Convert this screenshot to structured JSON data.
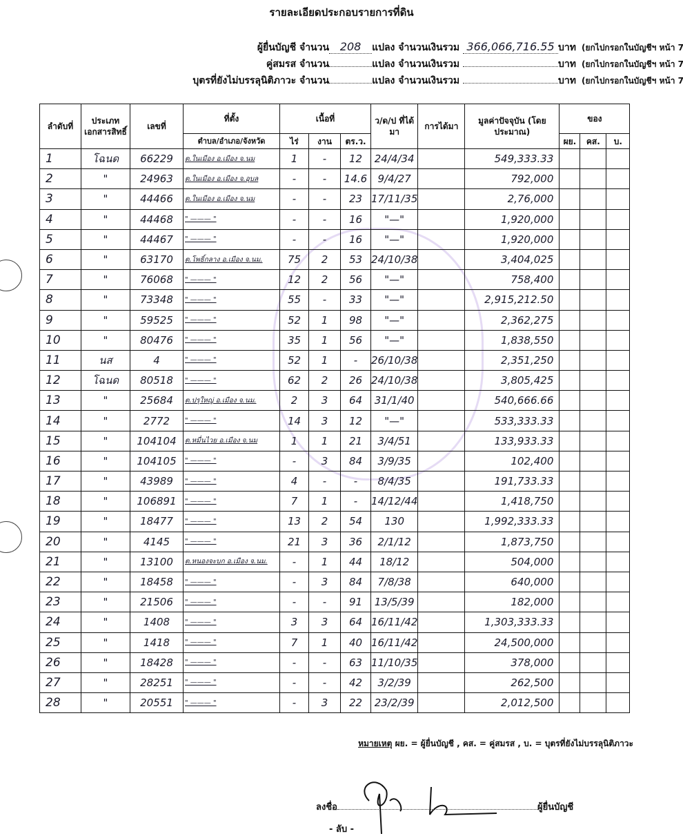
{
  "title": "รายละเอียดประกอบรายการที่ดิน",
  "summary": [
    {
      "who": "ผู้ยื่นบัญชี",
      "count_label": "จำนวน",
      "count": "208",
      "unit": "แปลง จำนวนเงินรวม",
      "amount": "366,066,716.55",
      "currency": "บาท",
      "note": "(ยกไปกรอกในบัญชีฯ หน้า 7)"
    },
    {
      "who": "คู่สมรส",
      "count_label": "จำนวน",
      "count": "",
      "unit": "แปลง จำนวนเงินรวม",
      "amount": "",
      "currency": "บาท",
      "note": "(ยกไปกรอกในบัญชีฯ หน้า 7)"
    },
    {
      "who": "บุตรที่ยังไม่บรรลุนิติภาวะ",
      "count_label": "จำนวน",
      "count": "",
      "unit": "แปลง จำนวนเงินรวม",
      "amount": "",
      "currency": "บาท",
      "note": "(ยกไปกรอกในบัญชีฯ หน้า 7)"
    }
  ],
  "table": {
    "headers": {
      "no": "ลำดับที่",
      "doc_type": "ประเภทเอกสารสิทธิ์",
      "number": "เลขที่",
      "location": "ที่ตั้ง",
      "location_sub": "ตำบล/อำเภอ/จังหวัด",
      "area": "เนื้อที่",
      "rai": "ไร่",
      "ngan": "งาน",
      "wa": "ตร.ว.",
      "date": "ว/ด/ป ที่ได้มา",
      "acquisition": "การได้มา",
      "value": "มูลค่าปัจจุบัน (โดยประมาณ)",
      "owner": "ของ",
      "owner_filer": "ผย.",
      "owner_spouse": "คส.",
      "owner_child": "บ."
    },
    "rows": [
      [
        "1",
        "โฉนด",
        "66229",
        "ต.ในเมือง อ.เมือง จ.นม",
        "1",
        "-",
        "12",
        "24/4/34",
        "",
        "549,333.33"
      ],
      [
        "2",
        "\"",
        "24963",
        "ต.ในเมือง อ.เมือง จ.อุบล",
        "-",
        "-",
        "14.6",
        "9/4/27",
        "",
        "792,000"
      ],
      [
        "3",
        "\"",
        "44466",
        "ต.ในเมือง อ.เมือง จ.นม",
        "-",
        "-",
        "23",
        "17/11/35",
        "",
        "2,76,000"
      ],
      [
        "4",
        "\"",
        "44468",
        "\" ——— \"",
        "-",
        "-",
        "16",
        "\"—\"",
        "",
        "1,920,000"
      ],
      [
        "5",
        "\"",
        "44467",
        "\" ——— \"",
        "-",
        "-",
        "16",
        "\"—\"",
        "",
        "1,920,000"
      ],
      [
        "6",
        "\"",
        "63170",
        "ต.โพธิ์กลาง อ.เมือง จ.นม.",
        "75",
        "2",
        "53",
        "24/10/38",
        "",
        "3,404,025"
      ],
      [
        "7",
        "\"",
        "76068",
        "\" ——— \"",
        "12",
        "2",
        "56",
        "\"—\"",
        "",
        "758,400"
      ],
      [
        "8",
        "\"",
        "73348",
        "\" ——— \"",
        "55",
        "-",
        "33",
        "\"—\"",
        "",
        "2,915,212.50"
      ],
      [
        "9",
        "\"",
        "59525",
        "\" ——— \"",
        "52",
        "1",
        "98",
        "\"—\"",
        "",
        "2,362,275"
      ],
      [
        "10",
        "\"",
        "80476",
        "\" ——— \"",
        "35",
        "1",
        "56",
        "\"—\"",
        "",
        "1,838,550"
      ],
      [
        "11",
        "นส",
        "4",
        "\" ——— \"",
        "52",
        "1",
        "-",
        "26/10/38",
        "",
        "2,351,250"
      ],
      [
        "12",
        "โฉนด",
        "80518",
        "\" ——— \"",
        "62",
        "2",
        "26",
        "24/10/38",
        "",
        "3,805,425"
      ],
      [
        "13",
        "\"",
        "25684",
        "ต.ปรุใหญ่ อ.เมือง จ.นม.",
        "2",
        "3",
        "64",
        "31/1/40",
        "",
        "540,666.66"
      ],
      [
        "14",
        "\"",
        "2772",
        "\" ——— \"",
        "14",
        "3",
        "12",
        "\"—\"",
        "",
        "533,333.33"
      ],
      [
        "15",
        "\"",
        "104104",
        "ต.หมื่นไวย อ.เมือง จ.นม",
        "1",
        "1",
        "21",
        "3/4/51",
        "",
        "133,933.33"
      ],
      [
        "16",
        "\"",
        "104105",
        "\" ——— \"",
        "-",
        "3",
        "84",
        "3/9/35",
        "",
        "102,400"
      ],
      [
        "17",
        "\"",
        "43989",
        "\" ——— \"",
        "4",
        "-",
        "-",
        "8/4/35",
        "",
        "191,733.33"
      ],
      [
        "18",
        "\"",
        "106891",
        "\" ——— \"",
        "7",
        "1",
        "-",
        "14/12/44",
        "",
        "1,418,750"
      ],
      [
        "19",
        "\"",
        "18477",
        "\" ——— \"",
        "13",
        "2",
        "54",
        "130",
        "",
        "1,992,333.33"
      ],
      [
        "20",
        "\"",
        "4145",
        "\" ——— \"",
        "21",
        "3",
        "36",
        "2/1/12",
        "",
        "1,873,750"
      ],
      [
        "21",
        "\"",
        "13100",
        "ต.หนองจะบก อ.เมือง จ.นม.",
        "-",
        "1",
        "44",
        "18/12",
        "",
        "504,000"
      ],
      [
        "22",
        "\"",
        "18458",
        "\" ——— \"",
        "-",
        "3",
        "84",
        "7/8/38",
        "",
        "640,000"
      ],
      [
        "23",
        "\"",
        "21506",
        "\" ——— \"",
        "-",
        "-",
        "91",
        "13/5/39",
        "",
        "182,000"
      ],
      [
        "24",
        "\"",
        "1408",
        "\" ——— \"",
        "3",
        "3",
        "64",
        "16/11/42",
        "",
        "1,303,333.33"
      ],
      [
        "25",
        "\"",
        "1418",
        "\" ——— \"",
        "7",
        "1",
        "40",
        "16/11/42",
        "",
        "24,500,000"
      ],
      [
        "26",
        "\"",
        "18428",
        "\" ——— \"",
        "-",
        "-",
        "63",
        "11/10/35",
        "",
        "378,000"
      ],
      [
        "27",
        "\"",
        "28251",
        "\" ——— \"",
        "-",
        "-",
        "42",
        "3/2/39",
        "",
        "262,500"
      ],
      [
        "28",
        "\"",
        "20551",
        "\" ——— \"",
        "-",
        "3",
        "22",
        "23/2/39",
        "",
        "2,012,500"
      ]
    ]
  },
  "legend": {
    "label": "หมายเหตุ",
    "text": " ผย. = ผู้ยื่นบัญชี , คส. = คู่สมรส , บ. = บุตรที่ยังไม่บรรลุนิติภาวะ"
  },
  "signature": {
    "label": "ลงชื่อ",
    "role": "ผู้ยื่นบัญชี"
  },
  "classification": "- ลับ -",
  "colors": {
    "ink": "#1a1a2a",
    "seal": "#9a6ed2"
  }
}
